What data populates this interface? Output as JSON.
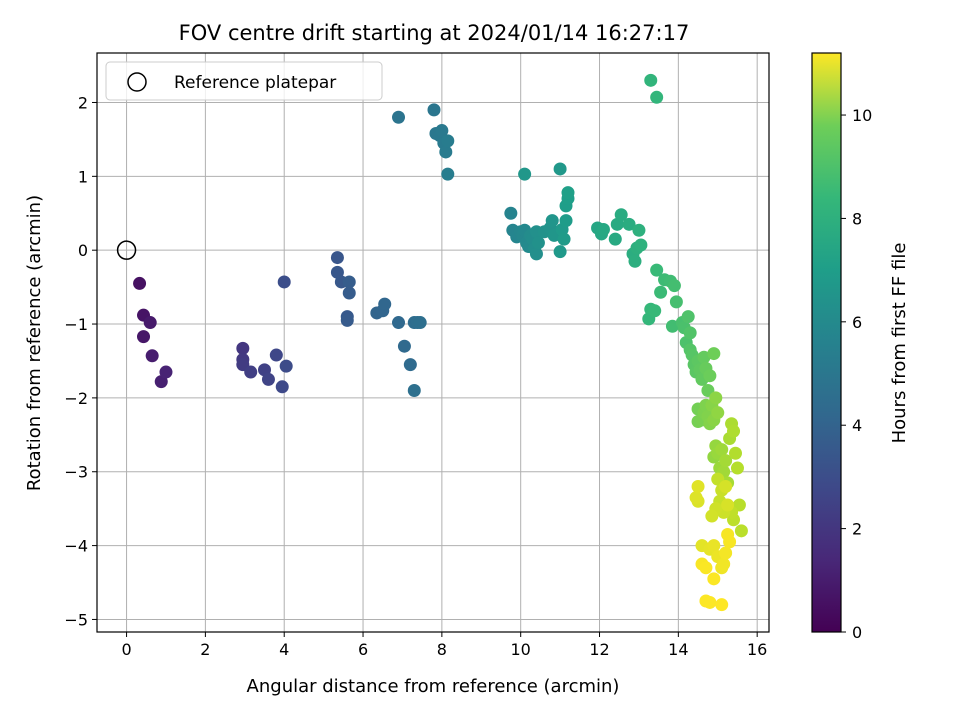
{
  "chart_data": {
    "type": "scatter",
    "title": "FOV centre drift starting at 2024/01/14 16:27:17",
    "xlabel": "Angular distance from reference (arcmin)",
    "ylabel": "Rotation from reference (arcmin)",
    "xlim": [
      -0.75,
      16.3
    ],
    "ylim": [
      -5.17,
      2.67
    ],
    "xticks": [
      0,
      2,
      4,
      6,
      8,
      10,
      12,
      14,
      16
    ],
    "yticks": [
      -5,
      -4,
      -3,
      -2,
      -1,
      0,
      1,
      2
    ],
    "grid": true,
    "legend": {
      "placement": "top-left",
      "entries": [
        "Reference platepar"
      ]
    },
    "reference_point": {
      "x": 0,
      "y": 0
    },
    "colorbar": {
      "label": "Hours from first FF file",
      "colormap": "viridis",
      "range": [
        0,
        11.2
      ],
      "ticks": [
        0,
        2,
        4,
        6,
        8,
        10
      ]
    },
    "points": [
      {
        "x": 0.33,
        "y": -0.45,
        "h": 0.5
      },
      {
        "x": 0.43,
        "y": -0.88,
        "h": 0.6
      },
      {
        "x": 0.43,
        "y": -1.17,
        "h": 0.7
      },
      {
        "x": 0.6,
        "y": -0.98,
        "h": 0.8
      },
      {
        "x": 0.65,
        "y": -1.43,
        "h": 0.9
      },
      {
        "x": 0.88,
        "y": -1.78,
        "h": 1.0
      },
      {
        "x": 1.0,
        "y": -1.65,
        "h": 1.1
      },
      {
        "x": 2.95,
        "y": -1.33,
        "h": 1.8
      },
      {
        "x": 2.95,
        "y": -1.48,
        "h": 1.9
      },
      {
        "x": 2.95,
        "y": -1.55,
        "h": 2.0
      },
      {
        "x": 3.15,
        "y": -1.65,
        "h": 2.1
      },
      {
        "x": 3.5,
        "y": -1.62,
        "h": 2.2
      },
      {
        "x": 3.6,
        "y": -1.75,
        "h": 2.3
      },
      {
        "x": 3.8,
        "y": -1.42,
        "h": 2.4
      },
      {
        "x": 3.95,
        "y": -1.85,
        "h": 2.5
      },
      {
        "x": 4.05,
        "y": -1.57,
        "h": 2.6
      },
      {
        "x": 4.0,
        "y": -0.43,
        "h": 2.7
      },
      {
        "x": 5.35,
        "y": -0.1,
        "h": 3.0
      },
      {
        "x": 5.35,
        "y": -0.3,
        "h": 3.05
      },
      {
        "x": 5.45,
        "y": -0.43,
        "h": 3.1
      },
      {
        "x": 5.6,
        "y": -0.9,
        "h": 3.15
      },
      {
        "x": 5.6,
        "y": -0.95,
        "h": 3.2
      },
      {
        "x": 5.65,
        "y": -0.58,
        "h": 3.25
      },
      {
        "x": 5.65,
        "y": -0.43,
        "h": 3.3
      },
      {
        "x": 6.35,
        "y": -0.85,
        "h": 3.6
      },
      {
        "x": 6.5,
        "y": -0.82,
        "h": 3.65
      },
      {
        "x": 6.55,
        "y": -0.73,
        "h": 3.7
      },
      {
        "x": 6.9,
        "y": -0.98,
        "h": 3.8
      },
      {
        "x": 7.05,
        "y": -1.3,
        "h": 3.85
      },
      {
        "x": 7.2,
        "y": -1.55,
        "h": 3.9
      },
      {
        "x": 7.3,
        "y": -0.98,
        "h": 3.95
      },
      {
        "x": 7.38,
        "y": -0.98,
        "h": 4.0
      },
      {
        "x": 7.45,
        "y": -0.98,
        "h": 4.05
      },
      {
        "x": 7.3,
        "y": -1.9,
        "h": 4.1
      },
      {
        "x": 6.9,
        "y": 1.8,
        "h": 4.3
      },
      {
        "x": 7.8,
        "y": 1.9,
        "h": 4.4
      },
      {
        "x": 7.85,
        "y": 1.58,
        "h": 4.45
      },
      {
        "x": 7.95,
        "y": 1.55,
        "h": 4.5
      },
      {
        "x": 8.0,
        "y": 1.62,
        "h": 4.55
      },
      {
        "x": 8.05,
        "y": 1.45,
        "h": 4.6
      },
      {
        "x": 8.1,
        "y": 1.33,
        "h": 4.65
      },
      {
        "x": 8.15,
        "y": 1.48,
        "h": 4.7
      },
      {
        "x": 8.15,
        "y": 1.03,
        "h": 4.75
      },
      {
        "x": 9.75,
        "y": 0.5,
        "h": 5.0
      },
      {
        "x": 9.8,
        "y": 0.27,
        "h": 5.05
      },
      {
        "x": 9.9,
        "y": 0.18,
        "h": 5.1
      },
      {
        "x": 10.0,
        "y": 0.25,
        "h": 5.15
      },
      {
        "x": 10.05,
        "y": 0.2,
        "h": 5.2
      },
      {
        "x": 10.1,
        "y": 0.27,
        "h": 5.25
      },
      {
        "x": 10.15,
        "y": 0.1,
        "h": 5.3
      },
      {
        "x": 10.2,
        "y": 0.05,
        "h": 5.35
      },
      {
        "x": 10.25,
        "y": 0.2,
        "h": 5.4
      },
      {
        "x": 10.3,
        "y": 0.15,
        "h": 5.45
      },
      {
        "x": 10.35,
        "y": 0.02,
        "h": 5.5
      },
      {
        "x": 10.4,
        "y": -0.05,
        "h": 5.55
      },
      {
        "x": 10.4,
        "y": 0.25,
        "h": 5.6
      },
      {
        "x": 10.45,
        "y": 0.1,
        "h": 5.65
      },
      {
        "x": 10.6,
        "y": 0.25,
        "h": 5.7
      },
      {
        "x": 10.75,
        "y": 0.3,
        "h": 5.75
      },
      {
        "x": 10.8,
        "y": 0.4,
        "h": 5.8
      },
      {
        "x": 10.85,
        "y": 0.2,
        "h": 5.85
      },
      {
        "x": 10.1,
        "y": 1.03,
        "h": 5.9
      },
      {
        "x": 11.0,
        "y": 1.1,
        "h": 5.95
      },
      {
        "x": 11.0,
        "y": -0.02,
        "h": 6.0
      },
      {
        "x": 11.05,
        "y": 0.28,
        "h": 6.05
      },
      {
        "x": 11.1,
        "y": 0.15,
        "h": 6.1
      },
      {
        "x": 11.15,
        "y": 0.4,
        "h": 6.15
      },
      {
        "x": 11.15,
        "y": 0.6,
        "h": 6.2
      },
      {
        "x": 11.2,
        "y": 0.7,
        "h": 6.25
      },
      {
        "x": 11.2,
        "y": 0.78,
        "h": 6.3
      },
      {
        "x": 11.95,
        "y": 0.3,
        "h": 6.6
      },
      {
        "x": 12.05,
        "y": 0.22,
        "h": 6.65
      },
      {
        "x": 12.1,
        "y": 0.28,
        "h": 6.7
      },
      {
        "x": 12.4,
        "y": 0.15,
        "h": 6.75
      },
      {
        "x": 12.45,
        "y": 0.35,
        "h": 6.8
      },
      {
        "x": 12.55,
        "y": 0.48,
        "h": 6.85
      },
      {
        "x": 12.75,
        "y": 0.35,
        "h": 6.9
      },
      {
        "x": 12.85,
        "y": -0.05,
        "h": 6.95
      },
      {
        "x": 12.9,
        "y": -0.15,
        "h": 7.0
      },
      {
        "x": 12.95,
        "y": 0.03,
        "h": 7.05
      },
      {
        "x": 13.0,
        "y": 0.27,
        "h": 7.1
      },
      {
        "x": 13.05,
        "y": 0.07,
        "h": 7.15
      },
      {
        "x": 13.3,
        "y": 2.3,
        "h": 7.3
      },
      {
        "x": 13.45,
        "y": 2.07,
        "h": 7.35
      },
      {
        "x": 13.25,
        "y": -0.93,
        "h": 7.4
      },
      {
        "x": 13.3,
        "y": -0.8,
        "h": 7.45
      },
      {
        "x": 13.4,
        "y": -0.82,
        "h": 7.5
      },
      {
        "x": 13.45,
        "y": -0.27,
        "h": 7.55
      },
      {
        "x": 13.55,
        "y": -0.57,
        "h": 7.6
      },
      {
        "x": 13.65,
        "y": -0.4,
        "h": 7.65
      },
      {
        "x": 13.8,
        "y": -0.42,
        "h": 7.7
      },
      {
        "x": 13.85,
        "y": -1.03,
        "h": 7.75
      },
      {
        "x": 13.9,
        "y": -0.48,
        "h": 7.8
      },
      {
        "x": 13.95,
        "y": -0.7,
        "h": 7.85
      },
      {
        "x": 14.1,
        "y": -0.98,
        "h": 7.9
      },
      {
        "x": 14.15,
        "y": -1.05,
        "h": 7.95
      },
      {
        "x": 14.2,
        "y": -1.25,
        "h": 8.0
      },
      {
        "x": 14.25,
        "y": -0.9,
        "h": 8.05
      },
      {
        "x": 14.3,
        "y": -1.12,
        "h": 8.1
      },
      {
        "x": 14.3,
        "y": -1.35,
        "h": 8.15
      },
      {
        "x": 14.35,
        "y": -1.42,
        "h": 8.2
      },
      {
        "x": 14.4,
        "y": -1.55,
        "h": 8.25
      },
      {
        "x": 14.45,
        "y": -1.65,
        "h": 8.3
      },
      {
        "x": 14.5,
        "y": -1.5,
        "h": 8.35
      },
      {
        "x": 14.55,
        "y": -1.62,
        "h": 8.4
      },
      {
        "x": 14.6,
        "y": -1.75,
        "h": 8.45
      },
      {
        "x": 14.65,
        "y": -1.45,
        "h": 8.5
      },
      {
        "x": 14.7,
        "y": -1.6,
        "h": 8.55
      },
      {
        "x": 14.75,
        "y": -1.9,
        "h": 8.6
      },
      {
        "x": 14.8,
        "y": -1.7,
        "h": 8.65
      },
      {
        "x": 14.9,
        "y": -1.4,
        "h": 8.7
      },
      {
        "x": 14.5,
        "y": -2.15,
        "h": 8.8
      },
      {
        "x": 14.5,
        "y": -2.32,
        "h": 8.85
      },
      {
        "x": 14.6,
        "y": -2.3,
        "h": 8.9
      },
      {
        "x": 14.65,
        "y": -2.2,
        "h": 8.95
      },
      {
        "x": 14.7,
        "y": -2.1,
        "h": 9.0
      },
      {
        "x": 14.75,
        "y": -2.25,
        "h": 9.05
      },
      {
        "x": 14.8,
        "y": -2.35,
        "h": 9.1
      },
      {
        "x": 14.85,
        "y": -2.1,
        "h": 9.15
      },
      {
        "x": 14.9,
        "y": -2.3,
        "h": 9.2
      },
      {
        "x": 14.95,
        "y": -2.0,
        "h": 9.25
      },
      {
        "x": 15.0,
        "y": -2.2,
        "h": 9.3
      },
      {
        "x": 14.9,
        "y": -2.8,
        "h": 9.35
      },
      {
        "x": 14.95,
        "y": -2.65,
        "h": 9.4
      },
      {
        "x": 15.0,
        "y": -2.75,
        "h": 9.45
      },
      {
        "x": 15.05,
        "y": -2.95,
        "h": 9.5
      },
      {
        "x": 15.1,
        "y": -2.7,
        "h": 9.55
      },
      {
        "x": 15.15,
        "y": -3.0,
        "h": 9.6
      },
      {
        "x": 15.2,
        "y": -2.85,
        "h": 9.65
      },
      {
        "x": 15.25,
        "y": -3.15,
        "h": 9.7
      },
      {
        "x": 15.3,
        "y": -2.55,
        "h": 9.75
      },
      {
        "x": 15.35,
        "y": -2.35,
        "h": 9.8
      },
      {
        "x": 15.4,
        "y": -2.45,
        "h": 9.85
      },
      {
        "x": 15.45,
        "y": -2.75,
        "h": 9.9
      },
      {
        "x": 15.5,
        "y": -2.95,
        "h": 9.95
      },
      {
        "x": 15.55,
        "y": -3.45,
        "h": 10.0
      },
      {
        "x": 15.6,
        "y": -3.8,
        "h": 10.05
      },
      {
        "x": 15.4,
        "y": -3.65,
        "h": 10.1
      },
      {
        "x": 15.35,
        "y": -3.55,
        "h": 10.15
      },
      {
        "x": 15.0,
        "y": -3.1,
        "h": 10.2
      },
      {
        "x": 15.05,
        "y": -3.4,
        "h": 10.25
      },
      {
        "x": 15.1,
        "y": -3.25,
        "h": 10.3
      },
      {
        "x": 15.15,
        "y": -3.55,
        "h": 10.35
      },
      {
        "x": 14.95,
        "y": -3.5,
        "h": 10.4
      },
      {
        "x": 14.85,
        "y": -3.6,
        "h": 10.45
      },
      {
        "x": 15.2,
        "y": -3.2,
        "h": 10.5
      },
      {
        "x": 15.25,
        "y": -3.45,
        "h": 10.55
      },
      {
        "x": 14.5,
        "y": -3.4,
        "h": 10.6
      },
      {
        "x": 14.45,
        "y": -3.35,
        "h": 10.65
      },
      {
        "x": 14.5,
        "y": -3.2,
        "h": 10.7
      },
      {
        "x": 14.6,
        "y": -4.0,
        "h": 10.75
      },
      {
        "x": 14.8,
        "y": -4.05,
        "h": 10.8
      },
      {
        "x": 14.9,
        "y": -4.0,
        "h": 10.85
      },
      {
        "x": 15.0,
        "y": -4.15,
        "h": 10.9
      },
      {
        "x": 15.1,
        "y": -4.3,
        "h": 10.95
      },
      {
        "x": 15.15,
        "y": -4.25,
        "h": 11.0
      },
      {
        "x": 15.2,
        "y": -4.1,
        "h": 11.05
      },
      {
        "x": 15.25,
        "y": -3.85,
        "h": 11.08
      },
      {
        "x": 15.3,
        "y": -3.95,
        "h": 11.1
      },
      {
        "x": 14.6,
        "y": -4.25,
        "h": 11.12
      },
      {
        "x": 14.7,
        "y": -4.3,
        "h": 11.14
      },
      {
        "x": 14.9,
        "y": -4.45,
        "h": 11.16
      },
      {
        "x": 14.7,
        "y": -4.75,
        "h": 11.18
      },
      {
        "x": 14.8,
        "y": -4.77,
        "h": 11.19
      },
      {
        "x": 15.1,
        "y": -4.8,
        "h": 11.2
      }
    ]
  }
}
